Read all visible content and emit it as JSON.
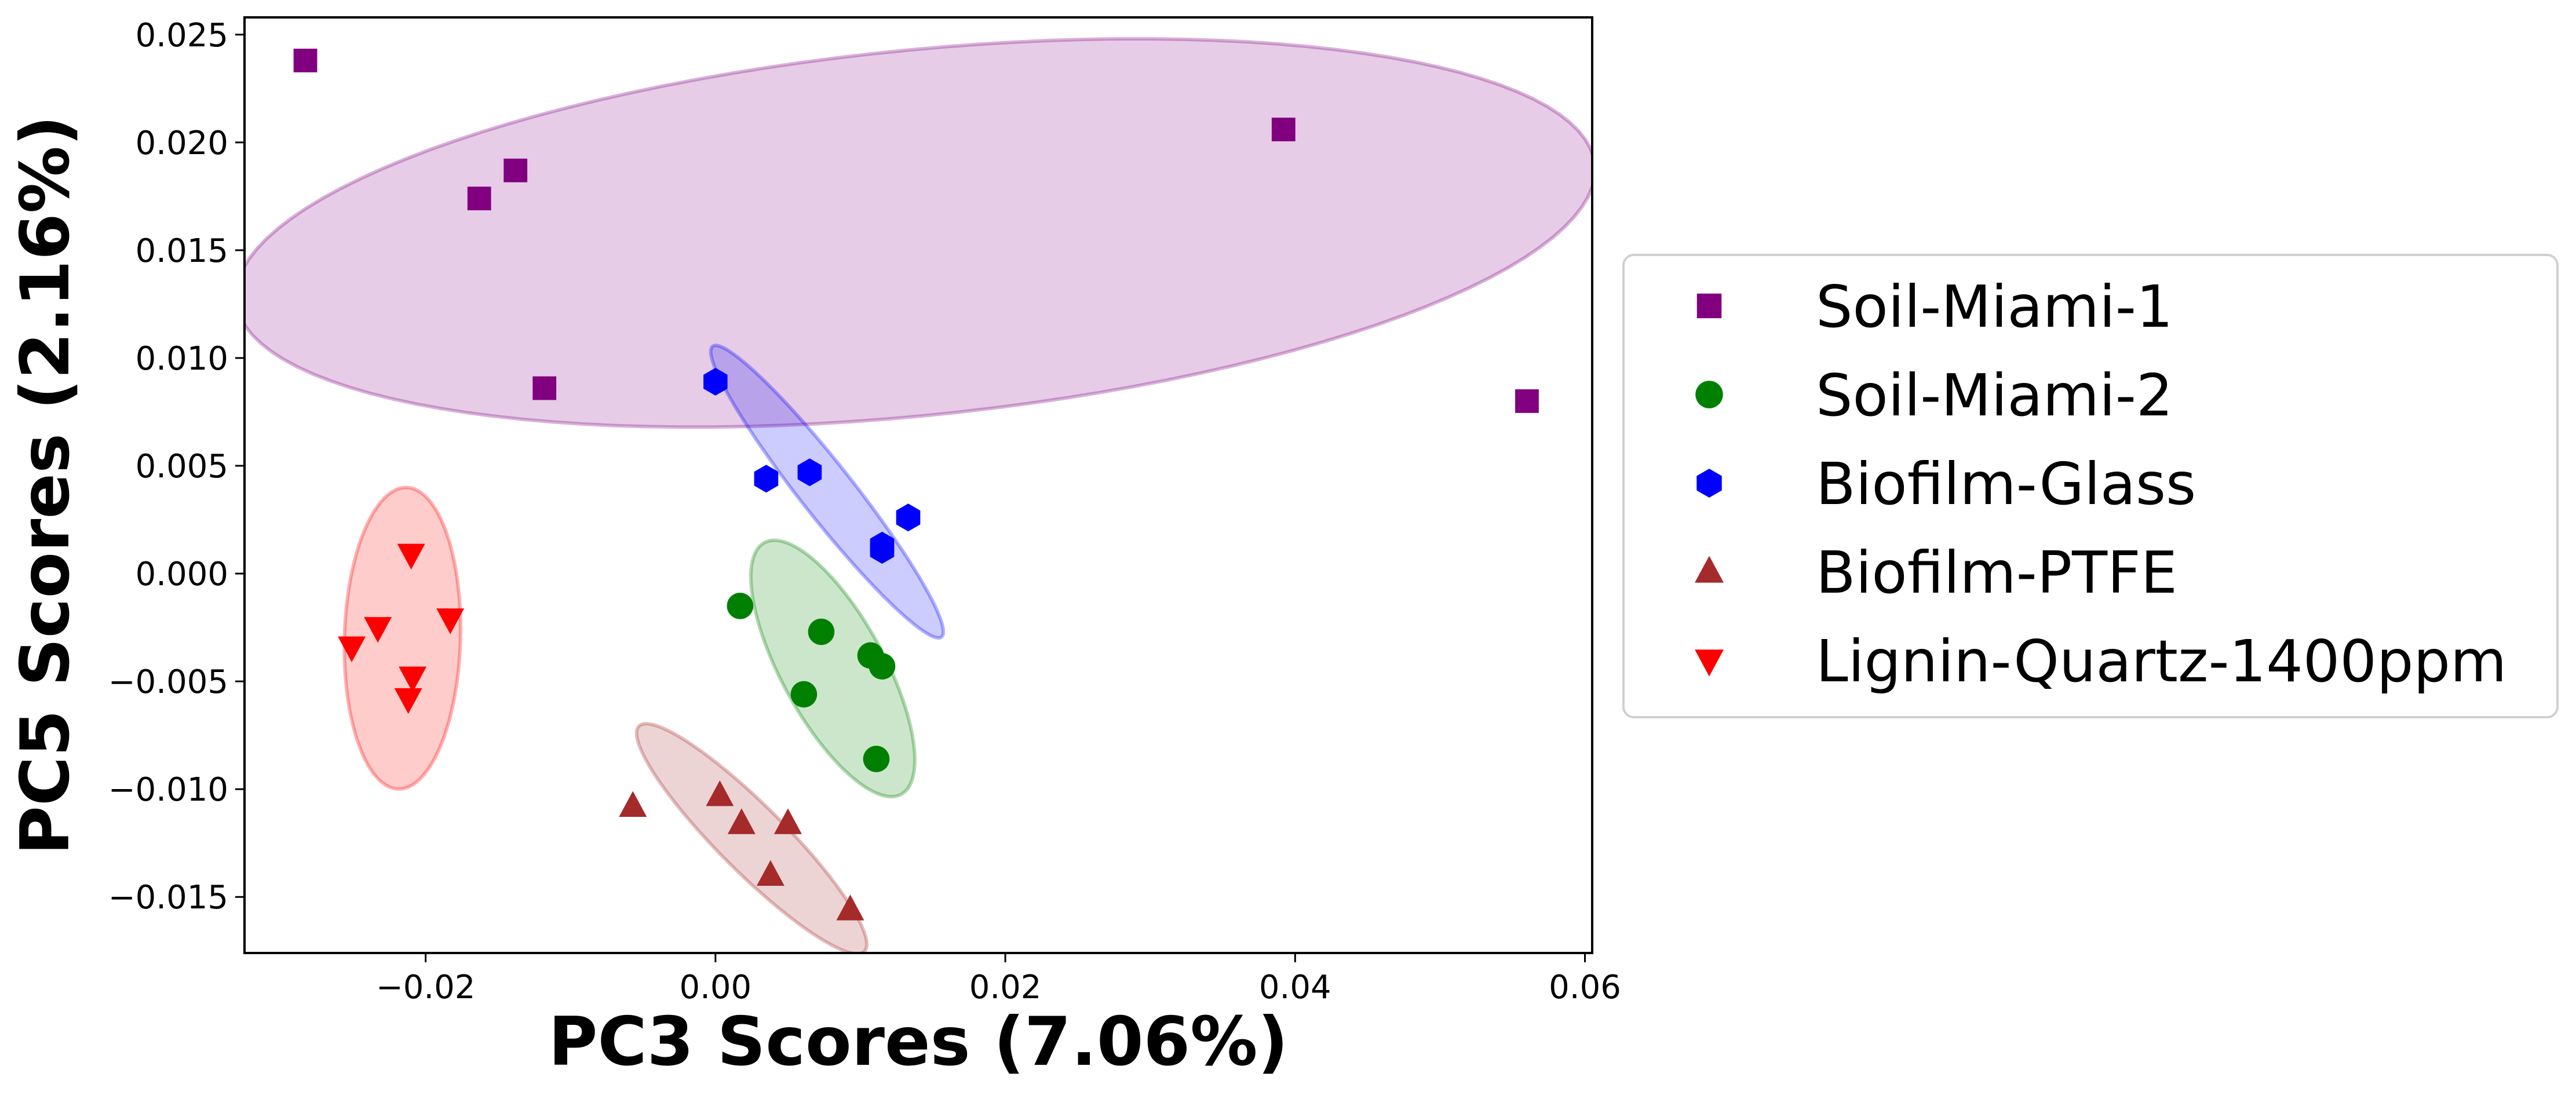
{
  "chart_data": {
    "type": "scatter",
    "xlabel": "PC3 Scores (7.06%)",
    "ylabel": "PC5 Scores (2.16%)",
    "xlim": [
      -0.0325,
      0.0605
    ],
    "ylim": [
      -0.0176,
      0.0258
    ],
    "xticks": [
      -0.02,
      0.0,
      0.02,
      0.04,
      0.06
    ],
    "xtick_labels": [
      "−0.02",
      "0.00",
      "0.02",
      "0.04",
      "0.06"
    ],
    "yticks": [
      -0.015,
      -0.01,
      -0.005,
      0.0,
      0.005,
      0.01,
      0.015,
      0.02,
      0.025
    ],
    "ytick_labels": [
      "−0.015",
      "−0.010",
      "−0.005",
      "0.000",
      "0.005",
      "0.010",
      "0.015",
      "0.020",
      "0.025"
    ],
    "grid": false,
    "legend_position": "outside-right",
    "series": [
      {
        "name": "Soil-Miami-1",
        "marker": "square",
        "color": "#800080",
        "points": [
          [
            -0.0283,
            0.0238
          ],
          [
            -0.0138,
            0.0187
          ],
          [
            -0.0163,
            0.0174
          ],
          [
            -0.0118,
            0.0086
          ],
          [
            0.0392,
            0.0206
          ],
          [
            0.056,
            0.008
          ]
        ],
        "ellipse": {
          "cx": 0.0138,
          "cy": 0.0158,
          "rx": 0.047,
          "ry": 0.0085,
          "angle_deg": 3.7
        }
      },
      {
        "name": "Soil-Miami-2",
        "marker": "circle",
        "color": "#008000",
        "points": [
          [
            0.0017,
            -0.0015
          ],
          [
            0.0073,
            -0.0027
          ],
          [
            0.0107,
            -0.0038
          ],
          [
            0.0115,
            -0.0043
          ],
          [
            0.0061,
            -0.0056
          ],
          [
            0.0111,
            -0.0086
          ]
        ],
        "ellipse": {
          "cx": 0.0081,
          "cy": -0.0044,
          "rx": 0.0076,
          "ry": 0.0031,
          "angle_deg": -47
        }
      },
      {
        "name": "Biofilm-Glass",
        "marker": "hexagon",
        "color": "#0000ff",
        "points": [
          [
            0.0,
            0.0089
          ],
          [
            0.0035,
            0.0044
          ],
          [
            0.0065,
            0.0047
          ],
          [
            0.0133,
            0.0026
          ],
          [
            0.0115,
            0.0013
          ],
          [
            0.0115,
            0.0011
          ]
        ],
        "ellipse": {
          "cx": 0.0077,
          "cy": 0.0038,
          "rx": 0.0104,
          "ry": 0.0015,
          "angle_deg": -40
        }
      },
      {
        "name": "Biofilm-PTFE",
        "marker": "triangle-up",
        "color": "#a52a2a",
        "points": [
          [
            -0.0057,
            -0.0108
          ],
          [
            0.0003,
            -0.0103
          ],
          [
            0.0018,
            -0.0116
          ],
          [
            0.005,
            -0.0116
          ],
          [
            0.0038,
            -0.014
          ],
          [
            0.0093,
            -0.0156
          ]
        ],
        "ellipse": {
          "cx": 0.0025,
          "cy": -0.0123,
          "rx": 0.0094,
          "ry": 0.0018,
          "angle_deg": -33
        }
      },
      {
        "name": "Lignin-Quartz-1400ppm",
        "marker": "triangle-down",
        "color": "#ff0000",
        "points": [
          [
            -0.021,
            0.0009
          ],
          [
            -0.0233,
            -0.0025
          ],
          [
            -0.0183,
            -0.0021
          ],
          [
            -0.0251,
            -0.0034
          ],
          [
            -0.0209,
            -0.0048
          ],
          [
            -0.0212,
            -0.0058
          ]
        ],
        "ellipse": {
          "cx": -0.0216,
          "cy": -0.003,
          "rx": 0.004,
          "ry": 0.007,
          "angle_deg": -3
        }
      }
    ]
  }
}
